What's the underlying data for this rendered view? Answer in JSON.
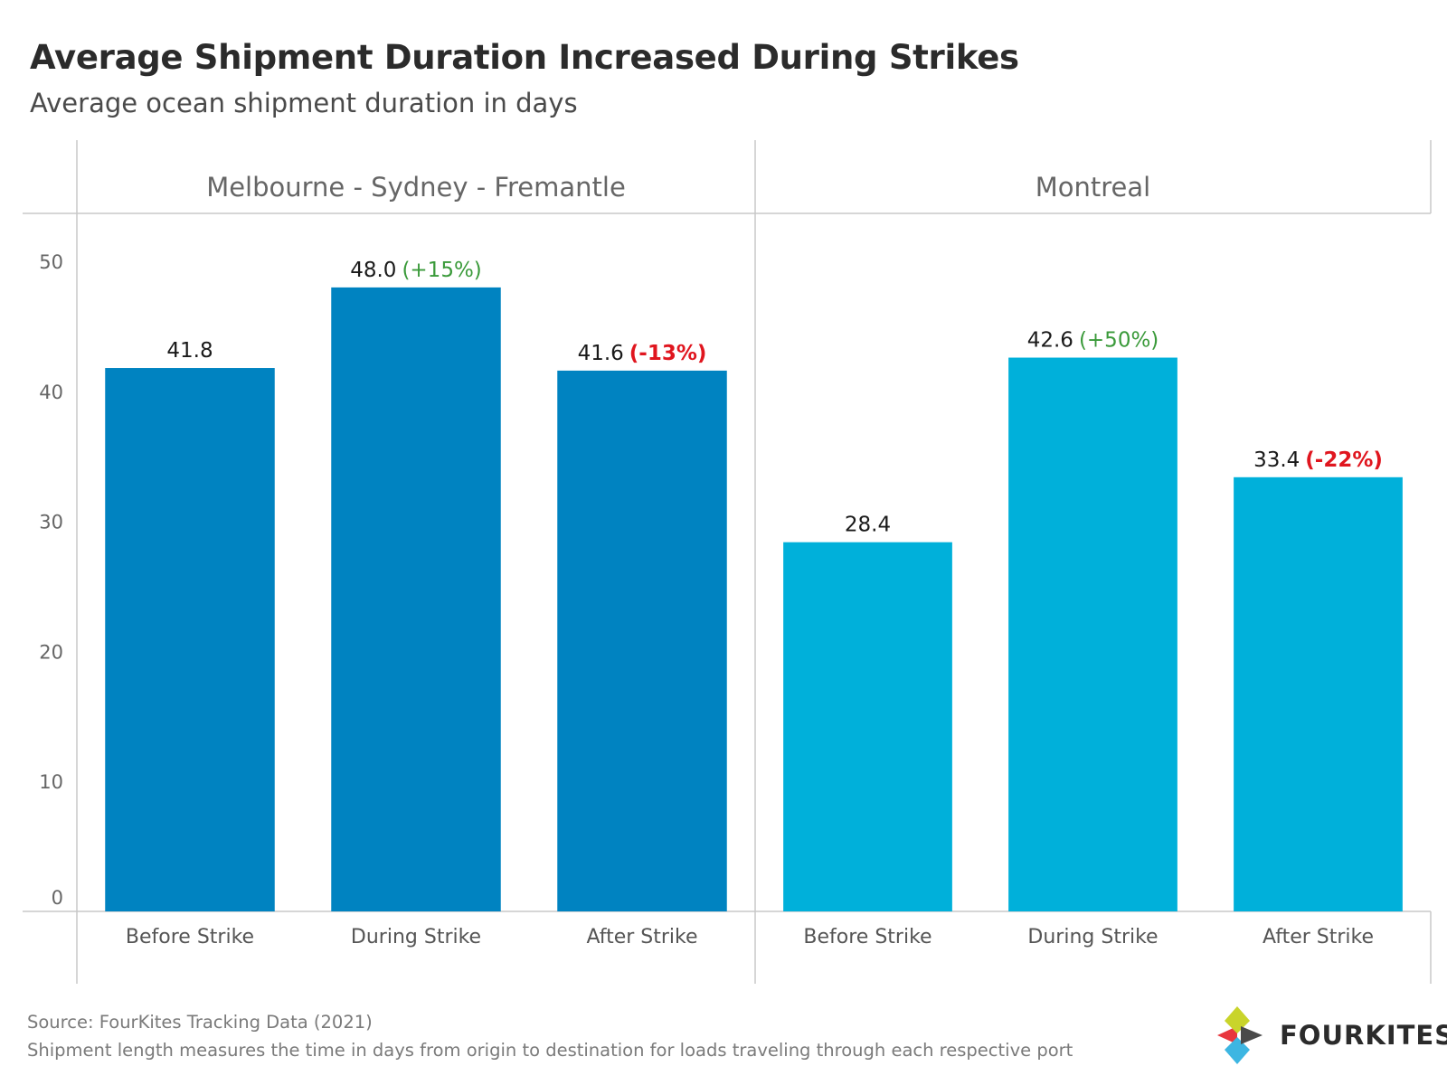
{
  "title": "Average Shipment Duration Increased During Strikes",
  "subtitle": "Average ocean shipment duration in days",
  "source": "Source: FourKites Tracking Data (2021)",
  "note": "Shipment length measures the time in days from origin to destination for loads traveling through each respective port",
  "logo": {
    "text": "FOURKITES",
    "colors": [
      "#e8373e",
      "#c9d42b",
      "#3db6e2",
      "#4a4a4a"
    ]
  },
  "colors": {
    "positive": "#3a9a3a",
    "negative": "#e0161f",
    "axis": "#c8c8c8",
    "tick_text": "#666666",
    "label_text": "#1a1a1a"
  },
  "chart_data": {
    "type": "bar",
    "ylim": [
      0,
      53
    ],
    "yticks": [
      0,
      10,
      20,
      30,
      40,
      50
    ],
    "grid": false,
    "panels": [
      {
        "name": "Melbourne - Sydney - Fremantle",
        "color": "#0083c1",
        "categories": [
          "Before Strike",
          "During Strike",
          "After Strike"
        ],
        "values": [
          41.8,
          48.0,
          41.6
        ],
        "value_labels": [
          "41.8",
          "48.0",
          "41.6"
        ],
        "change_labels": [
          "",
          "(+15%)",
          "(-13%)"
        ]
      },
      {
        "name": "Montreal",
        "color": "#00b0da",
        "categories": [
          "Before Strike",
          "During Strike",
          "After Strike"
        ],
        "values": [
          28.4,
          42.6,
          33.4
        ],
        "value_labels": [
          "28.4",
          "42.6",
          "33.4"
        ],
        "change_labels": [
          "",
          "(+50%)",
          "(-22%)"
        ]
      }
    ]
  }
}
